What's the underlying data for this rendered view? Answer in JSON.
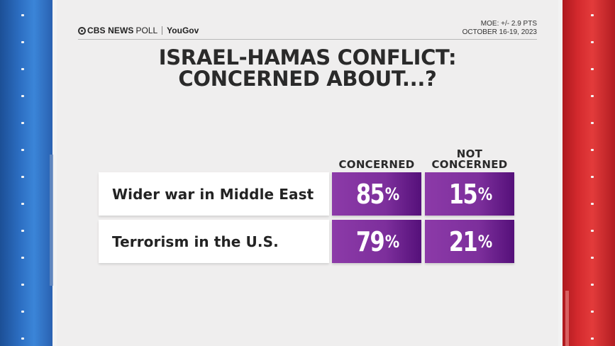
{
  "header": {
    "brand_cbs": "CBS NEWS",
    "brand_poll": "POLL",
    "brand_partner": "YouGov",
    "moe": "MOE: +/- 2.9 PTS",
    "dates": "OCTOBER 16-19, 2023"
  },
  "title_line1": "ISRAEL-HAMAS CONFLICT:",
  "title_line2": "CONCERNED ABOUT...?",
  "chart_data": {
    "type": "table",
    "columns": [
      "CONCERNED",
      "NOT CONCERNED"
    ],
    "column_display": [
      [
        "CONCERNED"
      ],
      [
        "NOT",
        "CONCERNED"
      ]
    ],
    "rows": [
      {
        "label": "Wider war in Middle East",
        "values": [
          85,
          15
        ]
      },
      {
        "label": "Terrorism in the U.S.",
        "values": [
          79,
          21
        ]
      }
    ],
    "unit": "%"
  },
  "colors": {
    "cell": "#7d2f9c",
    "left_stripe": "#2c6ec2",
    "right_stripe": "#d42a2e"
  }
}
